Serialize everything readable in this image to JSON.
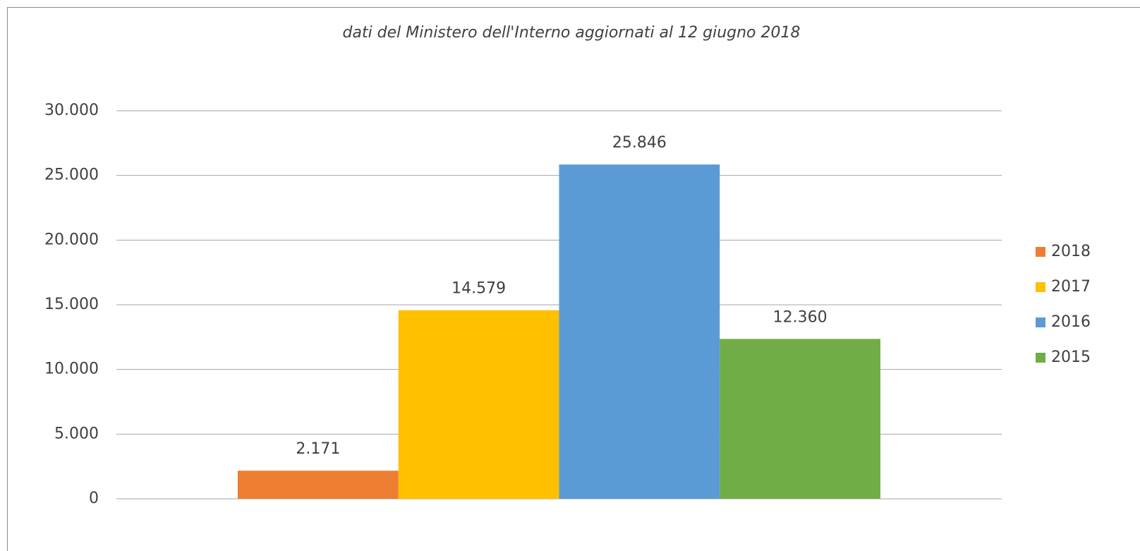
{
  "chart_data": {
    "type": "bar",
    "title": "dati del Ministero dell'Interno aggiornati al 12 giugno 2018",
    "categories": [
      null
    ],
    "series": [
      {
        "name": "2018",
        "color": "#ed7d31",
        "values": [
          2171
        ],
        "value_labels": [
          "2.171"
        ]
      },
      {
        "name": "2017",
        "color": "#ffc000",
        "values": [
          14579
        ],
        "value_labels": [
          "14.579"
        ]
      },
      {
        "name": "2016",
        "color": "#5b9bd5",
        "values": [
          25846
        ],
        "value_labels": [
          "25.846"
        ]
      },
      {
        "name": "2015",
        "color": "#70ad47",
        "values": [
          12360
        ],
        "value_labels": [
          "12.360"
        ]
      }
    ],
    "ylim": [
      0,
      30000
    ],
    "yticks": [
      0,
      {
        "value": 5000,
        "label": "5.000"
      },
      {
        "value": 10000,
        "label": "10.000"
      },
      {
        "value": 15000,
        "label": "15.000"
      },
      {
        "value": 20000,
        "label": "20.000"
      },
      {
        "value": 25000,
        "label": "25.000"
      },
      {
        "value": 30000,
        "label": "30.000"
      }
    ],
    "grid": true,
    "legend": "right"
  }
}
